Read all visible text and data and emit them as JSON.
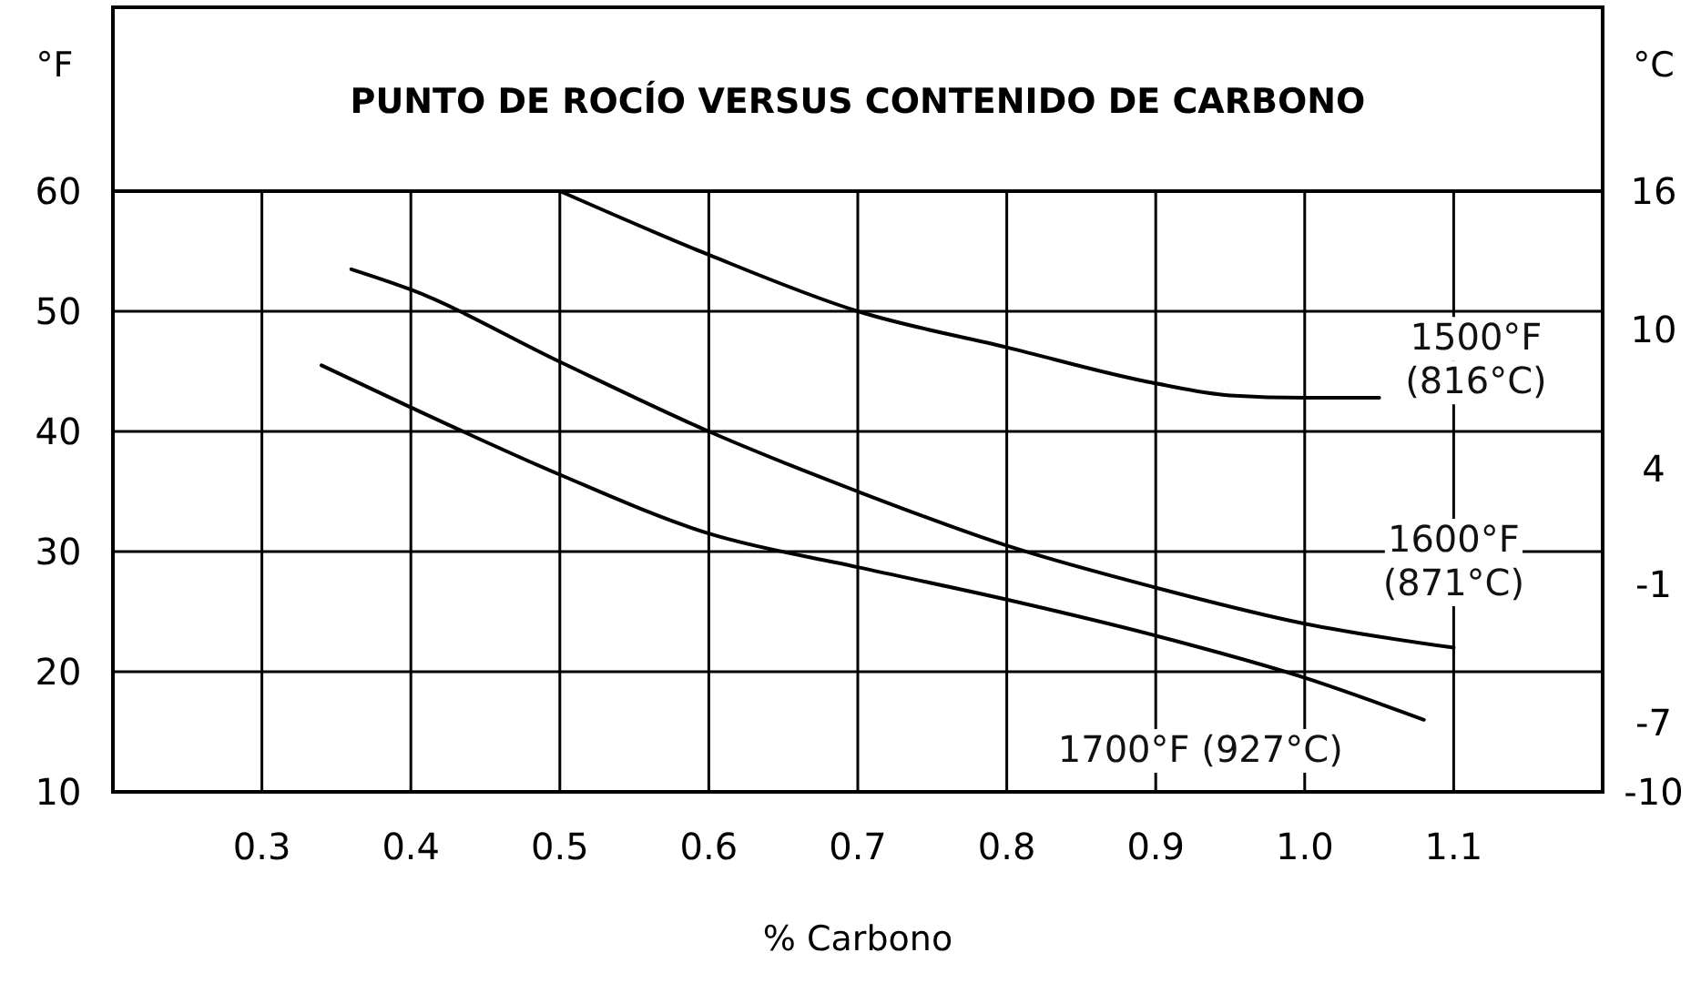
{
  "chart_data": {
    "type": "line",
    "title": "PUNTO DE ROCÍO VERSUS CONTENIDO DE CARBONO",
    "xlabel": "% Carbono",
    "ylabel": "°F",
    "y2label": "°C",
    "xlim": [
      0.2,
      1.2
    ],
    "xticks": [
      0.3,
      0.4,
      0.5,
      0.6,
      0.7,
      0.8,
      0.9,
      {
        "value": 1.0,
        "label": "1.0"
      },
      1.1
    ],
    "ylim": [
      10,
      60
    ],
    "yticks": [
      10,
      20,
      30,
      40,
      50,
      60
    ],
    "y2lim": [
      -10,
      16
    ],
    "y2ticks": [
      16,
      10,
      4,
      -1,
      -7,
      -10
    ],
    "grid": true,
    "marker": "none",
    "line_style": "solid",
    "series": [
      {
        "name": "1500°F (816°C)",
        "color": "#000000",
        "x": [
          0.5,
          0.6,
          0.7,
          0.8,
          0.9,
          0.95,
          1.0,
          1.05
        ],
        "values": [
          60,
          54.7,
          50,
          47,
          44,
          43,
          42.8,
          42.8
        ]
      },
      {
        "name": "1600°F (871°C)",
        "color": "#000000",
        "x": [
          0.36,
          0.4,
          0.5,
          0.6,
          0.7,
          0.8,
          0.9,
          1.0,
          1.1
        ],
        "values": [
          53.5,
          51.8,
          45.8,
          40,
          35,
          30.5,
          27,
          24,
          22
        ]
      },
      {
        "name": "1700°F (927°C)",
        "color": "#000000",
        "x": [
          0.34,
          0.4,
          0.5,
          0.6,
          0.7,
          0.8,
          0.9,
          1.0,
          1.08
        ],
        "values": [
          45.5,
          42,
          36.4,
          31.5,
          28.7,
          26,
          23,
          19.5,
          16
        ]
      }
    ]
  }
}
